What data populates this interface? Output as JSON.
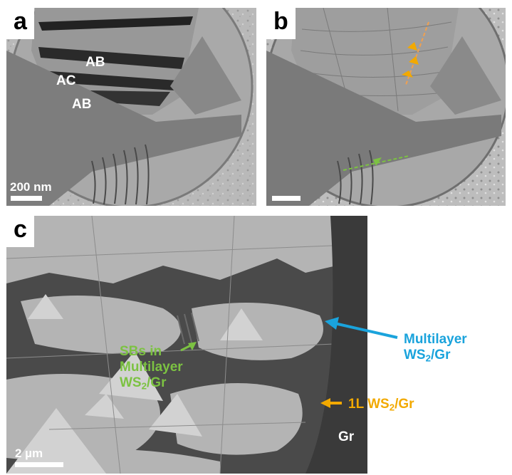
{
  "panels": {
    "a": {
      "label": "a",
      "scale_text": "200 nm",
      "stacking_labels": [
        "AB",
        "AC",
        "AB"
      ]
    },
    "b": {
      "label": "b"
    },
    "c": {
      "label": "c",
      "scale_text": "2 µm",
      "annotations": {
        "multilayer_main": "Multilayer WS",
        "multilayer_sub": "2",
        "multilayer_tail": "/Gr",
        "one_layer_main": "1L WS",
        "one_layer_sub": "2",
        "one_layer_tail": "/Gr",
        "sbs_line1": "SBs in",
        "sbs_line2": "Multilayer",
        "sbs_line3_main": "WS",
        "sbs_line3_sub": "2",
        "sbs_line3_tail": "/Gr",
        "graphite": "Gr"
      }
    }
  },
  "colors": {
    "multilayer_annotation": "#1aa3dc",
    "one_layer_annotation": "#f2a900",
    "sbs_annotation": "#7cc242",
    "fringe_line_orange": "#f0a050",
    "fringe_line_green": "#7cc242"
  }
}
